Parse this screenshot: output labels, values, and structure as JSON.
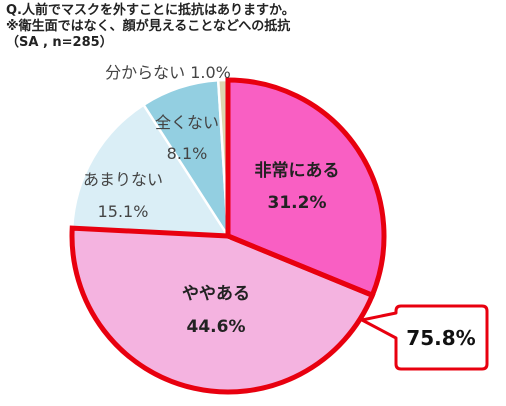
{
  "chart_data": {
    "type": "pie",
    "title_lines": [
      "Q.人前でマスクを外すことに抵抗はありますか。",
      "※衛生面ではなく、顔が見えることなどへの抵抗",
      "（SA , n=285）"
    ],
    "slices": [
      {
        "label": "非常にある",
        "value": 31.2,
        "value_label": "31.2%",
        "color": "#f95fc3"
      },
      {
        "label": "ややある",
        "value": 44.6,
        "value_label": "44.6%",
        "color": "#f4b3e0"
      },
      {
        "label": "あまりない",
        "value": 15.1,
        "value_label": "15.1%",
        "color": "#daeef6"
      },
      {
        "label": "全くない",
        "value": 8.1,
        "value_label": "8.1%",
        "color": "#93cfe1"
      },
      {
        "label": "分からない",
        "value": 1.0,
        "value_label": "1.0%",
        "color": "#ddd6b0"
      }
    ],
    "highlight": {
      "slices": [
        "非常にある",
        "ややある"
      ],
      "total_label": "75.8%",
      "outline_color": "#e8000f"
    }
  }
}
